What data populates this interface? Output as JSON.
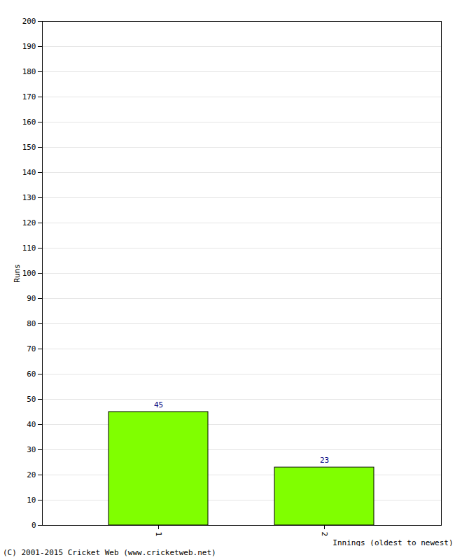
{
  "chart_data": {
    "type": "bar",
    "categories": [
      "1",
      "2"
    ],
    "values": [
      45,
      23
    ],
    "color": "#80ff00",
    "xlabel": "Innings (oldest to newest)",
    "ylabel": "Runs",
    "caption": "(C) 2001-2015 Cricket Web (www.cricketweb.net)",
    "ylim": [
      0,
      200
    ],
    "yticks": [
      0,
      10,
      20,
      30,
      40,
      50,
      60,
      70,
      80,
      90,
      100,
      110,
      120,
      130,
      140,
      150,
      160,
      170,
      180,
      190,
      200
    ],
    "grid": true,
    "data_labels": true
  }
}
